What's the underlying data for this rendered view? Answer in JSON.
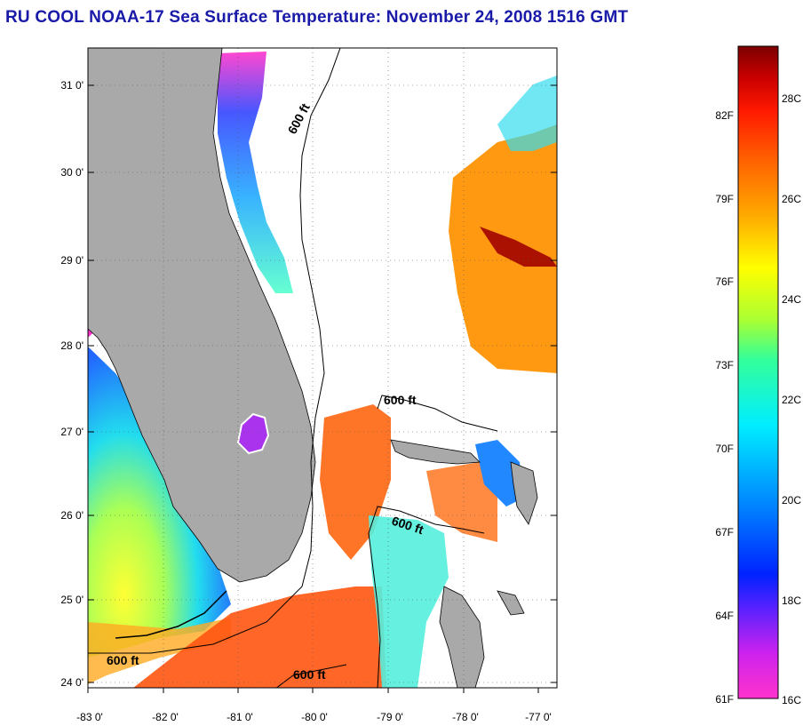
{
  "title": "RU COOL  NOAA-17  Sea Surface Temperature:  November 24, 2008 1516 GMT",
  "map": {
    "lat_labels": [
      "31 0'",
      "30 0'",
      "29 0'",
      "28 0'",
      "27 0'",
      "26 0'",
      "25 0'",
      "24 0'"
    ],
    "lon_labels": [
      "-83 0'",
      "-82 0'",
      "-81 0'",
      "-80 0'",
      "-79 0'",
      "-78 0'",
      "-77 0'"
    ],
    "contour_labels": [
      "600 ft",
      "600 ft",
      "600 ft",
      "600 ft",
      "600 ft"
    ],
    "land_color": "#a9a9a9",
    "cloud_color": "#ffffff"
  },
  "colorbar": {
    "fahrenheit_labels": [
      "82F",
      "79F",
      "76F",
      "73F",
      "70F",
      "67F",
      "64F",
      "61F"
    ],
    "celsius_labels": [
      "28C",
      "26C",
      "24C",
      "22C",
      "20C",
      "18C",
      "16C"
    ],
    "colors": [
      "#ff33cc",
      "#cc22ee",
      "#5522ff",
      "#0022ff",
      "#0088ff",
      "#00eeff",
      "#33ff99",
      "#aaff33",
      "#ffff00",
      "#ffaa00",
      "#ff6600",
      "#ff1a00",
      "#cc0000",
      "#7a0000"
    ]
  }
}
